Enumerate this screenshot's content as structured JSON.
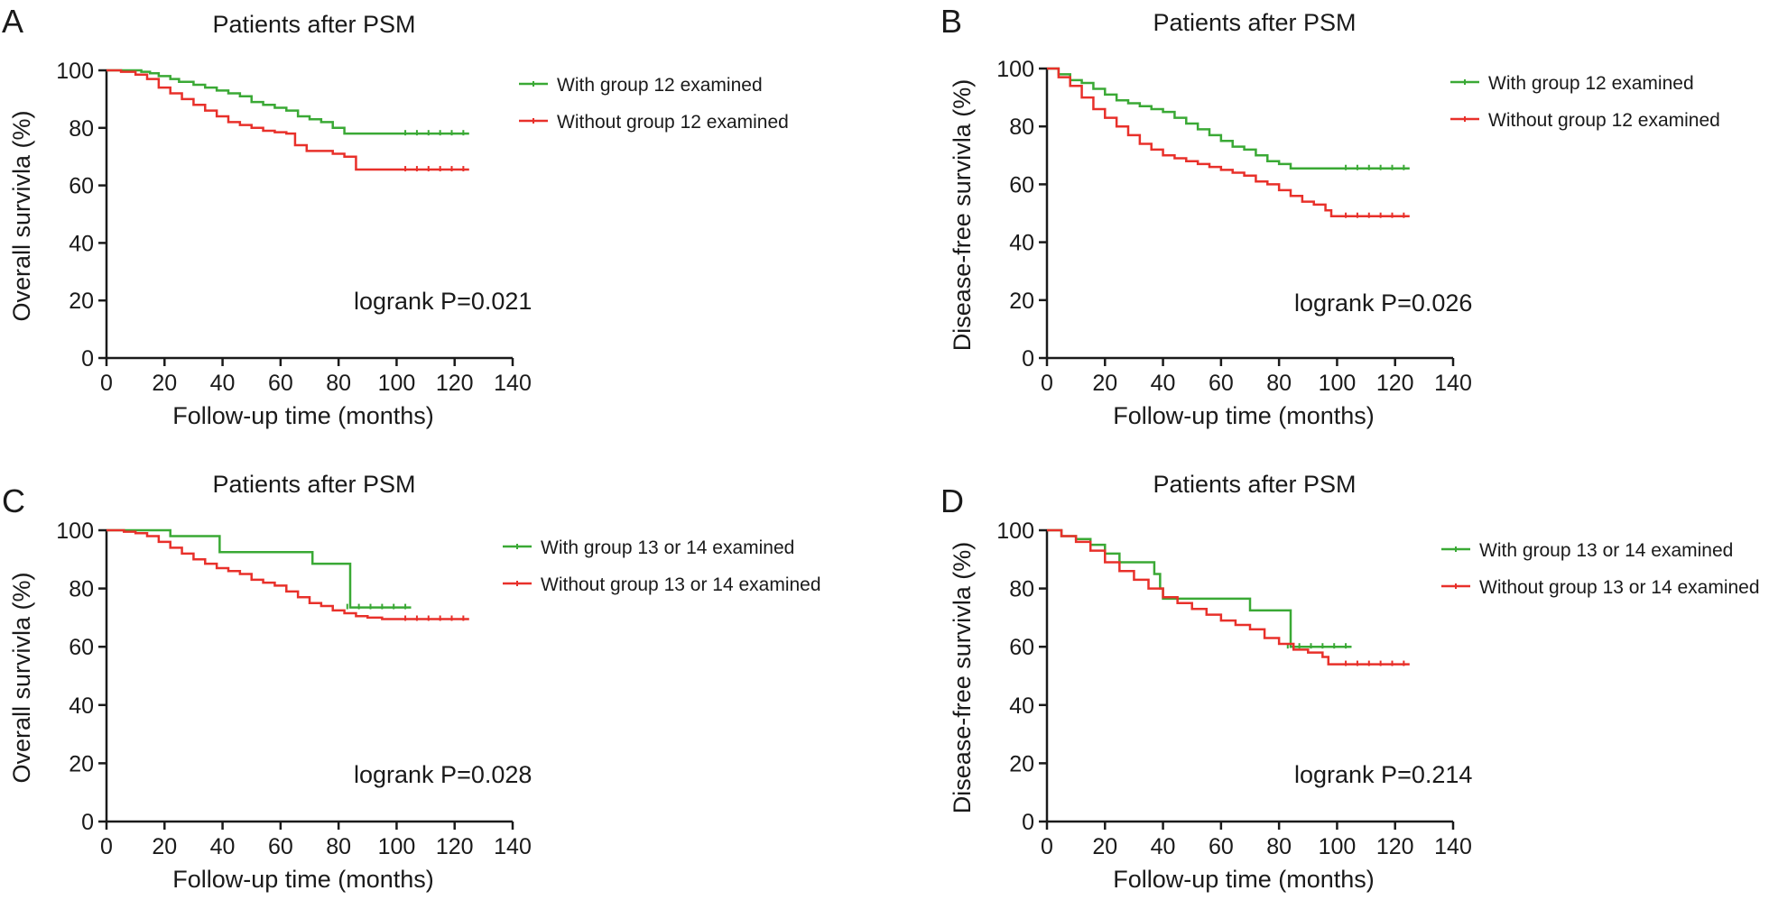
{
  "chart_data": [
    {
      "panel": "A",
      "type": "line",
      "title": "Patients after PSM",
      "xlabel": "Follow-up time (months)",
      "ylabel": "Overall survivla (%)",
      "xlim": [
        0,
        140
      ],
      "ylim": [
        0,
        100
      ],
      "xticks": [
        0,
        20,
        40,
        60,
        80,
        100,
        120,
        140
      ],
      "yticks": [
        0,
        20,
        40,
        60,
        80,
        100
      ],
      "annotation": "logrank P=0.021",
      "grid": false,
      "legend_position": "top-right",
      "series": [
        {
          "name": "With group 12 examined",
          "color": "#3aa935",
          "x": [
            0,
            12,
            15,
            18,
            22,
            25,
            30,
            34,
            38,
            42,
            46,
            50,
            54,
            58,
            62,
            66,
            70,
            74,
            78,
            82,
            86,
            90,
            95,
            100,
            105,
            110,
            115,
            120,
            125
          ],
          "y": [
            100,
            99.5,
            99,
            98,
            97,
            96,
            95,
            94,
            93,
            92,
            91,
            89,
            88,
            87,
            86,
            84,
            83,
            82,
            80,
            78,
            78,
            78,
            78,
            78,
            78,
            78,
            78,
            78,
            78
          ]
        },
        {
          "name": "Without group 12 examined",
          "color": "#e8302a",
          "x": [
            0,
            5,
            10,
            14,
            18,
            22,
            26,
            30,
            34,
            38,
            42,
            46,
            50,
            54,
            58,
            62,
            65,
            69,
            74,
            78,
            82,
            86,
            90,
            95,
            100,
            105,
            110,
            115,
            120,
            125
          ],
          "y": [
            100,
            99.5,
            98.5,
            97,
            94,
            92,
            90,
            88,
            86,
            84,
            82,
            81,
            80,
            79,
            78.5,
            78,
            74,
            72,
            72,
            71,
            70,
            65.5,
            65.5,
            65.5,
            65.5,
            65.5,
            65.5,
            65.5,
            65.5,
            65.5
          ]
        }
      ]
    },
    {
      "panel": "B",
      "type": "line",
      "title": "Patients after PSM",
      "xlabel": "Follow-up time (months)",
      "ylabel": "Disease-free survivla (%)",
      "xlim": [
        0,
        140
      ],
      "ylim": [
        0,
        100
      ],
      "xticks": [
        0,
        20,
        40,
        60,
        80,
        100,
        120,
        140
      ],
      "yticks": [
        0,
        20,
        40,
        60,
        80,
        100
      ],
      "annotation": "logrank P=0.026",
      "grid": false,
      "legend_position": "top-right",
      "series": [
        {
          "name": "With group 12 examined",
          "color": "#3aa935",
          "x": [
            0,
            4,
            8,
            12,
            16,
            20,
            24,
            28,
            32,
            36,
            40,
            44,
            48,
            52,
            56,
            60,
            64,
            68,
            72,
            76,
            80,
            84,
            90,
            95,
            100,
            105,
            110,
            115,
            120,
            125
          ],
          "y": [
            100,
            98,
            96,
            95,
            93,
            91,
            89,
            88,
            87,
            86,
            85,
            83,
            81,
            79,
            77,
            75,
            73,
            72,
            70,
            68,
            67,
            65.5,
            65.5,
            65.5,
            65.5,
            65.5,
            65.5,
            65.5,
            65.5,
            65.5
          ]
        },
        {
          "name": "Without group 12 examined",
          "color": "#e8302a",
          "x": [
            0,
            4,
            8,
            12,
            16,
            20,
            24,
            28,
            32,
            36,
            40,
            44,
            48,
            52,
            56,
            60,
            64,
            68,
            72,
            76,
            80,
            84,
            88,
            92,
            96,
            98,
            102,
            106,
            110,
            115,
            120,
            125
          ],
          "y": [
            100,
            97,
            94,
            90,
            86,
            83,
            80,
            77,
            74,
            72,
            70,
            69,
            68,
            67,
            66,
            65,
            64,
            63,
            61,
            60,
            58,
            56,
            54,
            53,
            51,
            49,
            49,
            49,
            49,
            49,
            49,
            49
          ]
        }
      ]
    },
    {
      "panel": "C",
      "type": "line",
      "title": "Patients after PSM",
      "xlabel": "Follow-up time (months)",
      "ylabel": "Overall survivla (%)",
      "xlim": [
        0,
        140
      ],
      "ylim": [
        0,
        100
      ],
      "xticks": [
        0,
        20,
        40,
        60,
        80,
        100,
        120,
        140
      ],
      "yticks": [
        0,
        20,
        40,
        60,
        80,
        100
      ],
      "annotation": "logrank P=0.028",
      "grid": false,
      "legend_position": "top-right",
      "series": [
        {
          "name": "With group 13 or 14 examined",
          "color": "#3aa935",
          "x": [
            0,
            20,
            22,
            38,
            39,
            50,
            60,
            70,
            71,
            80,
            83,
            84,
            90,
            95,
            100,
            105
          ],
          "y": [
            100,
            100,
            98,
            98,
            92.5,
            92.5,
            92.5,
            92.5,
            88.5,
            88.5,
            88.5,
            73.5,
            73.5,
            73.5,
            73.5,
            73.5
          ]
        },
        {
          "name": "Without group 13 or 14 examined",
          "color": "#e8302a",
          "x": [
            0,
            6,
            10,
            14,
            18,
            22,
            26,
            30,
            34,
            38,
            42,
            46,
            50,
            54,
            58,
            62,
            66,
            70,
            74,
            78,
            82,
            86,
            90,
            95,
            100,
            105,
            110,
            115,
            120,
            125
          ],
          "y": [
            100,
            99.5,
            99,
            98,
            96,
            94,
            92,
            90,
            88.5,
            87,
            86,
            85,
            83,
            82,
            81,
            79,
            77,
            75,
            74,
            72.5,
            71.5,
            70.5,
            70,
            69.5,
            69.5,
            69.5,
            69.5,
            69.5,
            69.5,
            69.5
          ]
        }
      ]
    },
    {
      "panel": "D",
      "type": "line",
      "title": "Patients after PSM",
      "xlabel": "Follow-up time (months)",
      "ylabel": "Disease-free survivla (%)",
      "xlim": [
        0,
        140
      ],
      "ylim": [
        0,
        100
      ],
      "xticks": [
        0,
        20,
        40,
        60,
        80,
        100,
        120,
        140
      ],
      "yticks": [
        0,
        20,
        40,
        60,
        80,
        100
      ],
      "annotation": "logrank P=0.214",
      "grid": false,
      "legend_position": "top-right",
      "series": [
        {
          "name": "With group 13 or 14 examined",
          "color": "#3aa935",
          "x": [
            0,
            5,
            10,
            15,
            20,
            25,
            30,
            35,
            37,
            39,
            40,
            50,
            60,
            69,
            70,
            80,
            83,
            84,
            90,
            95,
            100,
            105
          ],
          "y": [
            100,
            98,
            97,
            95,
            92,
            89,
            89,
            89,
            85,
            80,
            76.5,
            76.5,
            76.5,
            76.5,
            72.5,
            72.5,
            72.5,
            60,
            60,
            60,
            60,
            60
          ]
        },
        {
          "name": "Without group 13 or 14 examined",
          "color": "#e8302a",
          "x": [
            0,
            5,
            10,
            15,
            20,
            25,
            30,
            35,
            40,
            45,
            50,
            55,
            60,
            65,
            70,
            75,
            80,
            85,
            90,
            95,
            97,
            100,
            105,
            110,
            115,
            120,
            125
          ],
          "y": [
            100,
            98,
            96,
            93,
            89,
            86,
            83,
            80,
            77,
            75,
            73,
            71,
            69,
            67.5,
            66,
            63,
            61,
            59,
            58,
            56.5,
            54,
            54,
            54,
            54,
            54,
            54,
            54
          ]
        }
      ]
    }
  ]
}
